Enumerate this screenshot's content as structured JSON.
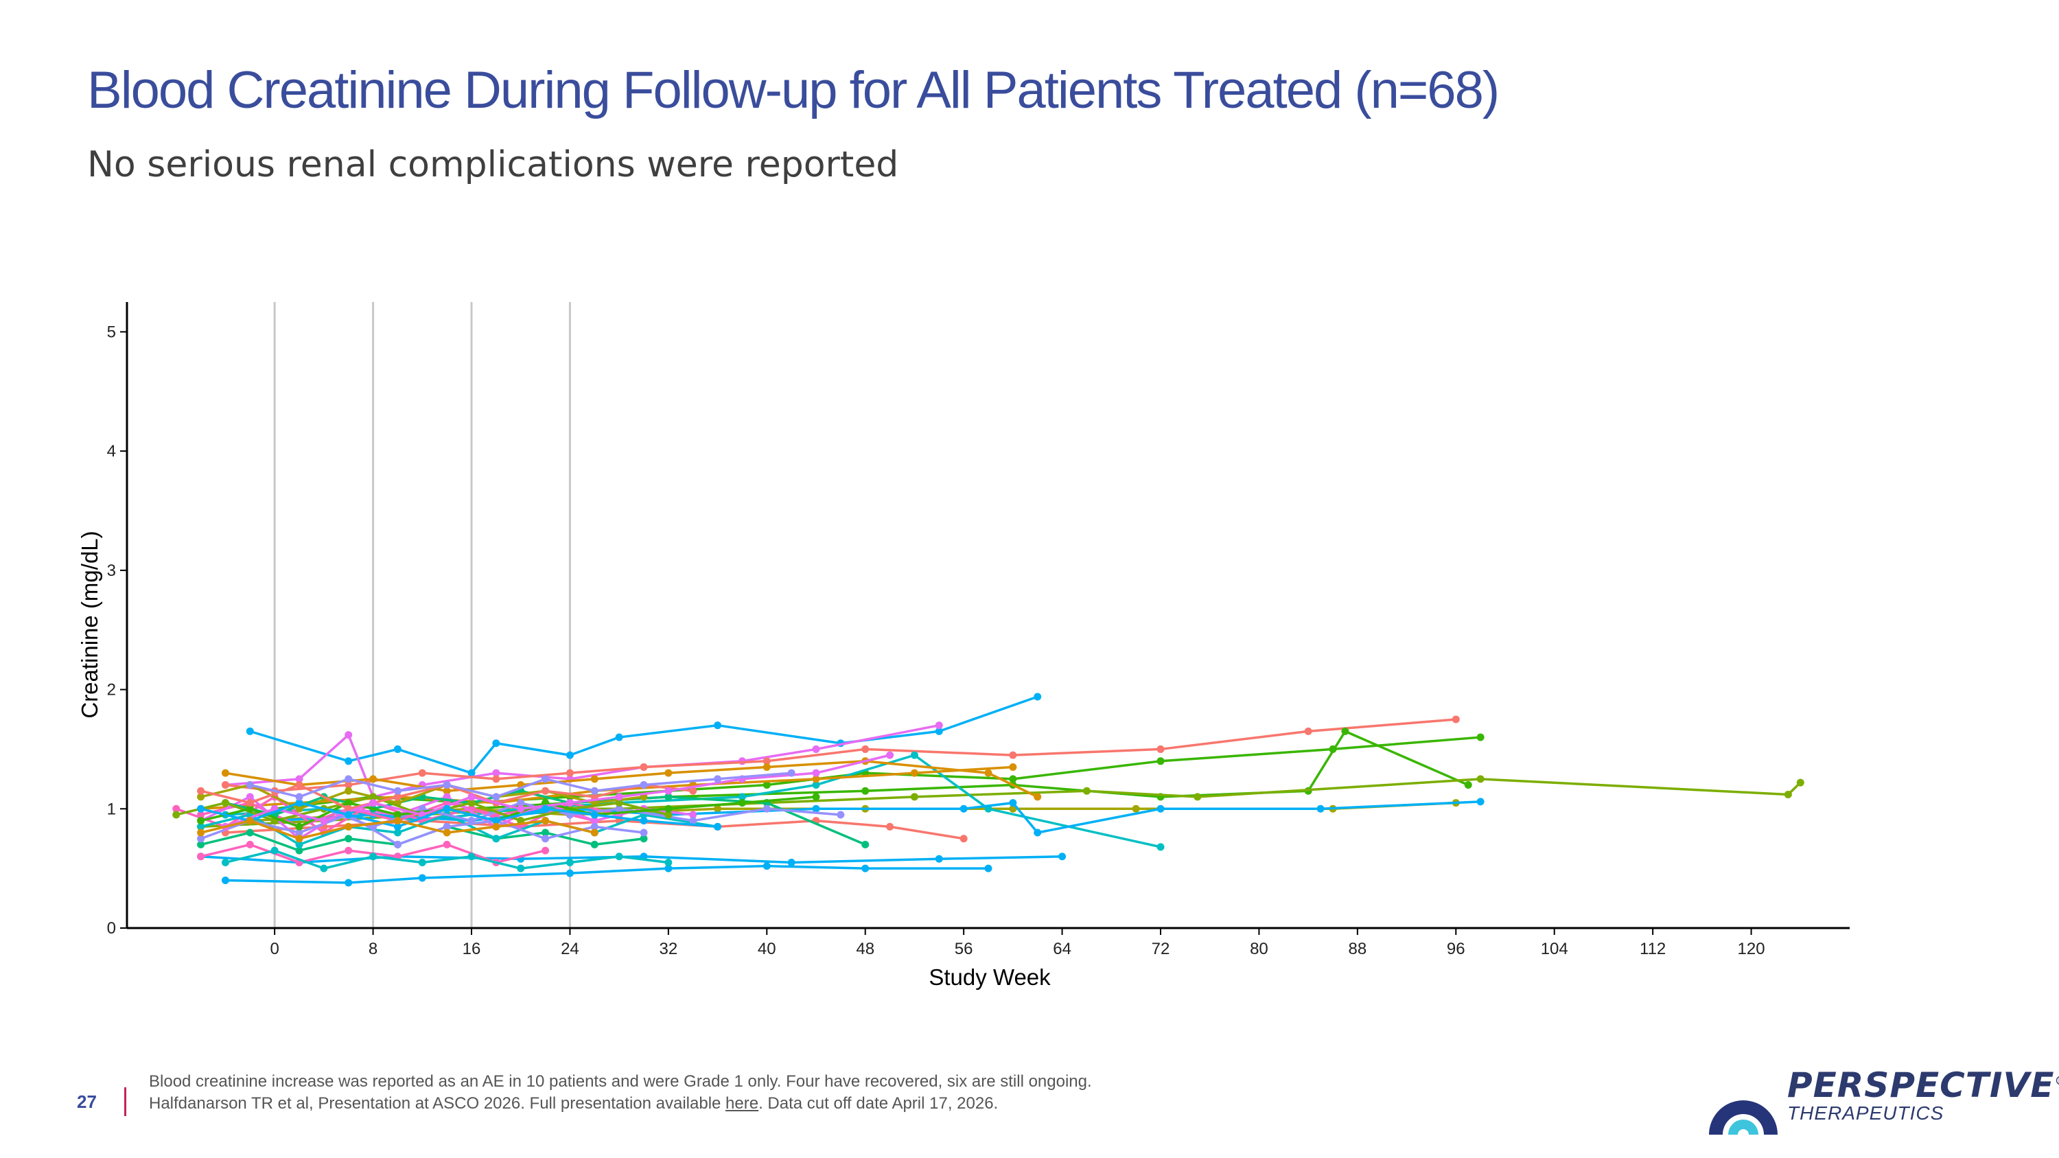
{
  "page": {
    "title": "Blood Creatinine During Follow-up for All Patients Treated (n=68)",
    "subtitle": "No serious renal complications were reported",
    "page_number": "27",
    "footnote_line1": "Blood creatinine increase was reported as an AE in 10 patients and were Grade 1 only.  Four have recovered, six are still ongoing.",
    "footnote_line2_pre": "Halfdanarson TR et al, Presentation at ASCO 2026. Full presentation available ",
    "footnote_link": "here",
    "footnote_line2_post": ". Data cut off date April 17, 2026.",
    "logo_main": "PERSPECTIVE",
    "logo_sub": "THERAPEUTICS",
    "logo_registered": "®"
  },
  "chart_data": {
    "type": "line",
    "xlabel": "Study Week",
    "ylabel": "Creatinine (mg/dL)",
    "xlim": [
      -12,
      128
    ],
    "ylim": [
      0,
      5.25
    ],
    "x_ticks": [
      0,
      8,
      16,
      24,
      32,
      40,
      48,
      56,
      64,
      72,
      80,
      88,
      96,
      104,
      112,
      120
    ],
    "y_ticks": [
      0,
      1,
      2,
      3,
      4,
      5
    ],
    "reference_lines_x": [
      0,
      8,
      16,
      24
    ],
    "grid": false,
    "legend": "none",
    "colors": [
      "#f8766d",
      "#d89000",
      "#a3a500",
      "#39b600",
      "#00bf7d",
      "#00bfc4",
      "#00b0f6",
      "#9590ff",
      "#e76bf3",
      "#ff62bc"
    ],
    "series": [
      {
        "color": "#00b0f6",
        "x": [
          -2,
          6,
          10,
          16,
          18,
          24,
          28,
          36,
          46,
          54,
          62
        ],
        "y": [
          1.65,
          1.4,
          1.5,
          1.3,
          1.55,
          1.45,
          1.6,
          1.7,
          1.55,
          1.65,
          1.94
        ]
      },
      {
        "color": "#e76bf3",
        "x": [
          -4,
          2,
          6,
          8,
          12,
          18,
          24,
          30,
          38,
          44,
          54
        ],
        "y": [
          1.2,
          1.25,
          1.62,
          1.1,
          1.2,
          1.3,
          1.25,
          1.35,
          1.4,
          1.5,
          1.7
        ]
      },
      {
        "color": "#f8766d",
        "x": [
          -4,
          0,
          6,
          12,
          18,
          24,
          30,
          40,
          48,
          60,
          72,
          84,
          96
        ],
        "y": [
          1.2,
          1.15,
          1.2,
          1.3,
          1.25,
          1.3,
          1.35,
          1.4,
          1.5,
          1.45,
          1.5,
          1.65,
          1.75
        ]
      },
      {
        "color": "#39b600",
        "x": [
          0,
          8,
          16,
          24,
          32,
          40,
          48,
          60,
          72,
          86,
          98
        ],
        "y": [
          1.0,
          1.1,
          1.05,
          1.1,
          1.15,
          1.2,
          1.3,
          1.25,
          1.4,
          1.5,
          1.6
        ]
      },
      {
        "color": "#39b600",
        "x": [
          0,
          8,
          16,
          24,
          32,
          48,
          60,
          72,
          84,
          87,
          97
        ],
        "y": [
          0.9,
          0.95,
          1.0,
          1.05,
          1.1,
          1.15,
          1.2,
          1.1,
          1.15,
          1.65,
          1.2
        ]
      },
      {
        "color": "#7cae00",
        "x": [
          -6,
          4,
          12,
          20,
          28,
          40,
          52,
          66,
          75,
          98,
          123,
          124
        ],
        "y": [
          0.85,
          0.9,
          0.95,
          1.0,
          1.0,
          1.05,
          1.1,
          1.15,
          1.1,
          1.25,
          1.12,
          1.22
        ]
      },
      {
        "color": "#a3a500",
        "x": [
          -2,
          8,
          16,
          24,
          36,
          48,
          60,
          70,
          86,
          96
        ],
        "y": [
          0.9,
          0.95,
          1.0,
          0.95,
          1.0,
          1.0,
          1.0,
          1.0,
          1.0,
          1.05
        ]
      },
      {
        "color": "#00bfc4",
        "x": [
          -4,
          4,
          12,
          20,
          28,
          38,
          44,
          52,
          58,
          72
        ],
        "y": [
          0.95,
          1.0,
          0.9,
          1.0,
          1.05,
          1.1,
          1.2,
          1.45,
          1.0,
          0.68
        ]
      },
      {
        "color": "#00b0f6",
        "x": [
          0,
          8,
          16,
          24,
          32,
          44,
          56,
          60,
          62,
          72,
          85,
          98
        ],
        "y": [
          0.9,
          0.95,
          0.9,
          1.0,
          0.95,
          1.0,
          1.0,
          1.05,
          0.8,
          1.0,
          1.0,
          1.06
        ]
      },
      {
        "color": "#00b0f6",
        "x": [
          -4,
          6,
          12,
          24,
          32,
          40,
          48,
          58
        ],
        "y": [
          0.4,
          0.38,
          0.42,
          0.46,
          0.5,
          0.52,
          0.5,
          0.5
        ]
      },
      {
        "color": "#00b0f6",
        "x": [
          -6,
          2,
          10,
          20,
          30,
          42,
          54,
          64
        ],
        "y": [
          0.6,
          0.55,
          0.6,
          0.58,
          0.6,
          0.55,
          0.58,
          0.6
        ]
      },
      {
        "color": "#d89000",
        "x": [
          -4,
          2,
          8,
          14,
          20,
          26,
          32,
          40,
          48,
          58,
          62
        ],
        "y": [
          1.3,
          1.2,
          1.25,
          1.15,
          1.2,
          1.25,
          1.3,
          1.35,
          1.4,
          1.3,
          1.1
        ]
      },
      {
        "color": "#d89000",
        "x": [
          -6,
          2,
          10,
          18,
          26,
          34,
          44,
          52,
          60
        ],
        "y": [
          1.0,
          1.05,
          1.1,
          1.05,
          1.15,
          1.2,
          1.25,
          1.3,
          1.35
        ]
      },
      {
        "color": "#f8766d",
        "x": [
          -4,
          4,
          12,
          20,
          28,
          36,
          44,
          50,
          56
        ],
        "y": [
          0.8,
          0.85,
          0.9,
          0.85,
          0.9,
          0.85,
          0.9,
          0.85,
          0.75
        ]
      },
      {
        "color": "#ff62bc",
        "x": [
          -6,
          -2,
          2,
          6,
          10,
          14,
          18,
          22,
          26
        ],
        "y": [
          0.95,
          1.05,
          0.85,
          1.0,
          0.9,
          1.05,
          0.95,
          1.0,
          0.9
        ]
      },
      {
        "color": "#ff62bc",
        "x": [
          -8,
          -4,
          0,
          4,
          8,
          12,
          16,
          20,
          24,
          28
        ],
        "y": [
          1.0,
          0.85,
          1.1,
          0.8,
          1.05,
          0.9,
          1.0,
          0.85,
          1.05,
          0.95
        ]
      },
      {
        "color": "#e76bf3",
        "x": [
          -6,
          -2,
          2,
          6,
          10,
          14,
          18,
          22,
          26,
          30,
          34
        ],
        "y": [
          0.9,
          1.1,
          0.75,
          1.0,
          0.95,
          1.1,
          0.85,
          1.05,
          0.9,
          1.0,
          0.95
        ]
      },
      {
        "color": "#00bf7d",
        "x": [
          -6,
          -2,
          2,
          6,
          10,
          14,
          18,
          22,
          26,
          30
        ],
        "y": [
          0.7,
          0.8,
          0.65,
          0.75,
          0.7,
          0.85,
          0.75,
          0.8,
          0.7,
          0.75
        ]
      },
      {
        "color": "#00bf7d",
        "x": [
          -4,
          0,
          4,
          8,
          12,
          16,
          20,
          24,
          32,
          40,
          48
        ],
        "y": [
          1.05,
          0.95,
          1.1,
          1.0,
          1.1,
          1.05,
          1.15,
          1.05,
          1.1,
          1.05,
          0.7
        ]
      },
      {
        "color": "#00bfc4",
        "x": [
          -6,
          -2,
          2,
          6,
          10,
          14,
          18,
          22,
          26,
          30,
          36
        ],
        "y": [
          0.85,
          0.95,
          0.7,
          0.85,
          0.8,
          0.95,
          0.75,
          0.9,
          0.8,
          0.95,
          0.85
        ]
      },
      {
        "color": "#9590ff",
        "x": [
          -6,
          -2,
          2,
          6,
          10,
          14,
          18,
          22,
          26,
          30
        ],
        "y": [
          0.75,
          0.9,
          0.8,
          0.95,
          0.7,
          0.85,
          0.9,
          0.75,
          0.85,
          0.8
        ]
      },
      {
        "color": "#9590ff",
        "x": [
          -4,
          0,
          4,
          8,
          12,
          16,
          20,
          24,
          28,
          34,
          40,
          46
        ],
        "y": [
          1.05,
          0.9,
          1.0,
          0.85,
          1.0,
          0.9,
          1.05,
          0.95,
          1.0,
          0.9,
          1.0,
          0.95
        ]
      },
      {
        "color": "#a3a500",
        "x": [
          -6,
          -2,
          2,
          6,
          10,
          14,
          18,
          22,
          26,
          30
        ],
        "y": [
          1.1,
          1.2,
          1.0,
          1.15,
          1.05,
          1.2,
          1.1,
          1.15,
          1.05,
          1.1
        ]
      },
      {
        "color": "#7cae00",
        "x": [
          -8,
          -4,
          0,
          4,
          8,
          12,
          16,
          20,
          24,
          28,
          32
        ],
        "y": [
          0.95,
          1.05,
          0.9,
          1.0,
          1.1,
          0.95,
          1.05,
          0.9,
          1.0,
          1.05,
          0.95
        ]
      },
      {
        "color": "#39b600",
        "x": [
          -6,
          -2,
          2,
          6,
          10,
          14,
          18,
          22,
          26,
          32,
          38,
          44
        ],
        "y": [
          0.9,
          1.0,
          0.85,
          1.05,
          0.95,
          1.0,
          0.9,
          1.05,
          0.95,
          1.0,
          1.05,
          1.1
        ]
      },
      {
        "color": "#f8766d",
        "x": [
          -6,
          -2,
          2,
          6,
          10,
          14,
          18,
          22,
          26,
          30,
          34
        ],
        "y": [
          1.15,
          1.05,
          1.2,
          1.0,
          1.1,
          1.2,
          1.05,
          1.15,
          1.1,
          1.2,
          1.15
        ]
      },
      {
        "color": "#ff62bc",
        "x": [
          -6,
          -2,
          2,
          6,
          10,
          14,
          18,
          22
        ],
        "y": [
          0.6,
          0.7,
          0.55,
          0.65,
          0.6,
          0.7,
          0.55,
          0.65
        ]
      },
      {
        "color": "#e76bf3",
        "x": [
          -4,
          0,
          4,
          8,
          12,
          16,
          20,
          24,
          28,
          32,
          38,
          44,
          50
        ],
        "y": [
          0.85,
          1.0,
          0.9,
          1.05,
          0.95,
          1.1,
          1.0,
          1.05,
          1.1,
          1.15,
          1.25,
          1.3,
          1.45
        ]
      },
      {
        "color": "#00b0f6",
        "x": [
          -6,
          -2,
          2,
          6,
          10,
          14,
          18,
          22,
          26,
          30,
          36
        ],
        "y": [
          1.0,
          0.9,
          1.05,
          0.95,
          0.85,
          1.0,
          0.9,
          1.0,
          0.95,
          0.9,
          0.85
        ]
      },
      {
        "color": "#00bfc4",
        "x": [
          -4,
          0,
          4,
          8,
          12,
          16,
          20,
          24,
          28,
          32
        ],
        "y": [
          0.55,
          0.65,
          0.5,
          0.6,
          0.55,
          0.6,
          0.5,
          0.55,
          0.6,
          0.55
        ]
      },
      {
        "color": "#d89000",
        "x": [
          -6,
          -2,
          2,
          6,
          10,
          14,
          18,
          22,
          26
        ],
        "y": [
          0.8,
          0.9,
          0.75,
          0.85,
          0.9,
          0.8,
          0.85,
          0.9,
          0.8
        ]
      },
      {
        "color": "#9590ff",
        "x": [
          -2,
          2,
          6,
          10,
          14,
          18,
          22,
          26,
          30,
          36,
          42
        ],
        "y": [
          1.2,
          1.1,
          1.25,
          1.15,
          1.2,
          1.1,
          1.25,
          1.15,
          1.2,
          1.25,
          1.3
        ]
      }
    ]
  }
}
